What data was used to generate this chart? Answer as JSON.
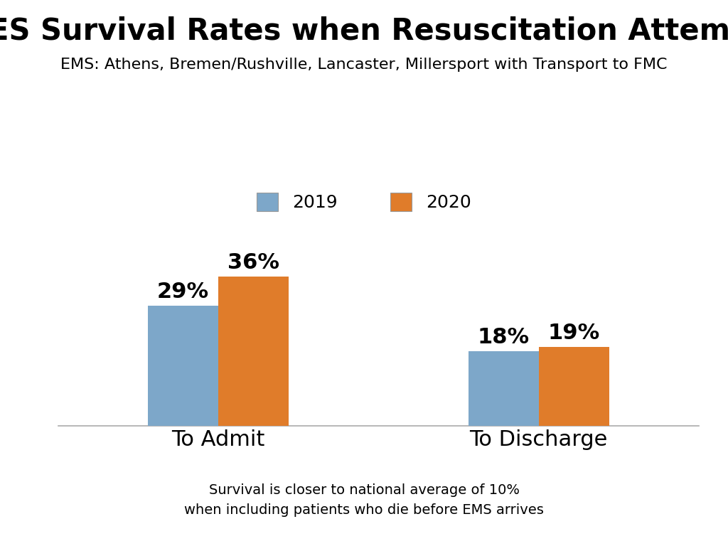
{
  "title": "CARES Survival Rates when Resuscitation Attempted",
  "subtitle": "EMS: Athens, Bremen/Rushville, Lancaster, Millersport with Transport to FMC",
  "categories": [
    "To Admit",
    "To Discharge"
  ],
  "values_2019": [
    29,
    18
  ],
  "values_2020": [
    36,
    19
  ],
  "labels_2019": [
    "29%",
    "18%"
  ],
  "labels_2020": [
    "36%",
    "19%"
  ],
  "color_2019": "#7da7c9",
  "color_2020": "#e07c2a",
  "legend_labels": [
    "2019",
    "2020"
  ],
  "footnote_line1": "Survival is closer to national average of 10%",
  "footnote_line2": "when including patients who die before EMS arrives",
  "background_color": "#ffffff",
  "title_fontsize": 30,
  "subtitle_fontsize": 16,
  "bar_label_fontsize": 22,
  "category_fontsize": 22,
  "legend_fontsize": 18,
  "footnote_fontsize": 14,
  "ylim": [
    0,
    50
  ],
  "bar_width": 0.22,
  "x_positions": [
    0.25,
    0.75
  ]
}
